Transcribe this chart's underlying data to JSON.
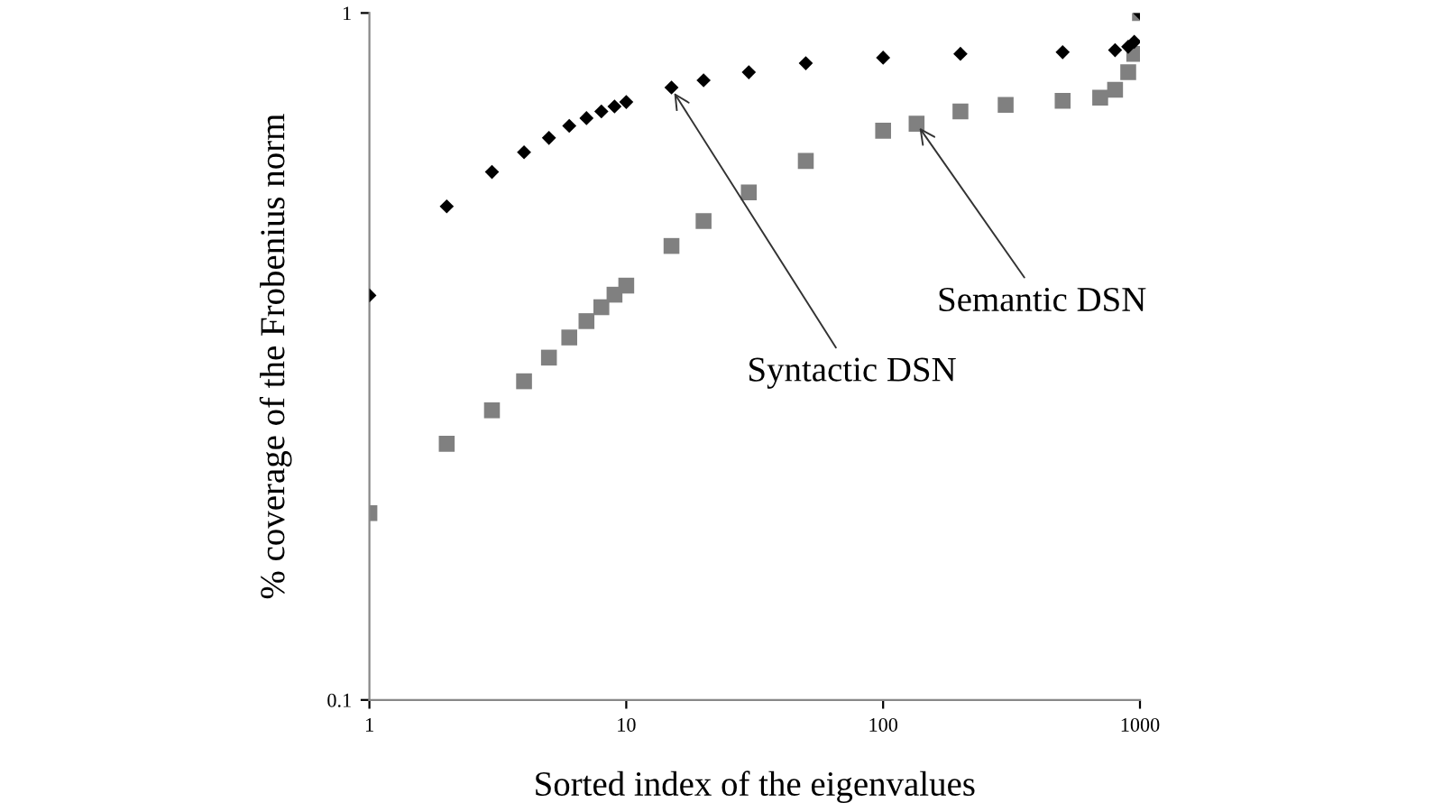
{
  "chart_data": {
    "type": "scatter",
    "xlabel": "Sorted index of the eigenvalues",
    "ylabel": "% coverage of the Frobenius norm",
    "log": "xy",
    "xlim": [
      1,
      1000
    ],
    "ylim": [
      0.1,
      1
    ],
    "xticks": [
      1,
      10,
      100,
      1000
    ],
    "yticks": [
      0.1,
      1
    ],
    "grid": false,
    "legend": false,
    "series": [
      {
        "color": "#000000",
        "marker": "diamond",
        "x": [
          1,
          2,
          3,
          4,
          5,
          6,
          7,
          8,
          9,
          10,
          15,
          20,
          30,
          50,
          100,
          200,
          500,
          800,
          900,
          950,
          1000
        ],
        "values": [
          0.388,
          0.523,
          0.587,
          0.627,
          0.658,
          0.685,
          0.703,
          0.719,
          0.731,
          0.742,
          0.779,
          0.798,
          0.82,
          0.845,
          0.861,
          0.872,
          0.877,
          0.883,
          0.893,
          0.908,
          1
        ]
      },
      {
        "color": "#808080",
        "marker": "square",
        "x": [
          1,
          2,
          3,
          4,
          5,
          6,
          7,
          8,
          9,
          10,
          15,
          20,
          30,
          50,
          100,
          135,
          200,
          300,
          500,
          700,
          800,
          900,
          950,
          1000
        ],
        "values": [
          0.187,
          0.236,
          0.264,
          0.291,
          0.315,
          0.337,
          0.356,
          0.373,
          0.389,
          0.401,
          0.458,
          0.498,
          0.548,
          0.609,
          0.674,
          0.69,
          0.719,
          0.735,
          0.745,
          0.753,
          0.773,
          0.82,
          0.872,
          1
        ]
      }
    ],
    "annotations": [
      {
        "text": "Syntactic DSN",
        "x": 15,
        "y": 0.776
      },
      {
        "text": "Semantic DSN",
        "x": 135,
        "y": 0.69
      }
    ]
  }
}
